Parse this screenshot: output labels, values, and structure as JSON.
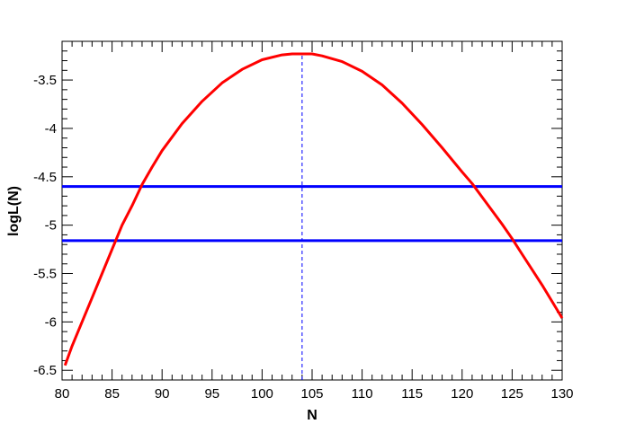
{
  "chart_data": {
    "type": "line",
    "title": "",
    "xlabel": "N",
    "ylabel": "logL(N)",
    "xlim": [
      80,
      130
    ],
    "ylim": [
      -6.6,
      -3.1
    ],
    "x_ticks": [
      80,
      85,
      90,
      95,
      100,
      105,
      110,
      115,
      120,
      125,
      130
    ],
    "x_tick_labels": [
      "80",
      "85",
      "90",
      "95",
      "100",
      "105",
      "110",
      "115",
      "120",
      "125",
      "130"
    ],
    "y_ticks": [
      -3.5,
      -4,
      -4.5,
      -5,
      -5.5,
      -6,
      -6.5
    ],
    "y_tick_labels": [
      "-3.5",
      "-4",
      "-4.5",
      "-5",
      "-5.5",
      "-6",
      "-6.5"
    ],
    "grid": false,
    "series": [
      {
        "color": "#ff0000",
        "x": [
          80.3,
          81,
          82,
          83,
          84,
          85,
          86,
          87,
          88,
          89,
          90,
          92,
          94,
          96,
          98,
          100,
          102,
          103,
          104,
          105,
          106,
          108,
          110,
          112,
          114,
          116,
          118,
          120,
          121,
          122,
          124,
          125,
          126,
          128,
          130
        ],
        "y": [
          -6.45,
          -6.25,
          -6.0,
          -5.75,
          -5.5,
          -5.25,
          -5.0,
          -4.8,
          -4.58,
          -4.4,
          -4.23,
          -3.95,
          -3.72,
          -3.53,
          -3.39,
          -3.29,
          -3.24,
          -3.23,
          -3.23,
          -3.23,
          -3.25,
          -3.31,
          -3.41,
          -3.55,
          -3.74,
          -3.96,
          -4.2,
          -4.45,
          -4.57,
          -4.71,
          -4.99,
          -5.14,
          -5.3,
          -5.62,
          -5.96
        ]
      }
    ],
    "hlines": [
      {
        "y": -4.6,
        "color": "#0000ff"
      },
      {
        "y": -5.16,
        "color": "#0000ff"
      }
    ],
    "vlines": [
      {
        "x": 104,
        "color": "#0000ff",
        "style": "dashed",
        "y_from": -6.6,
        "y_to": -3.23
      }
    ]
  }
}
